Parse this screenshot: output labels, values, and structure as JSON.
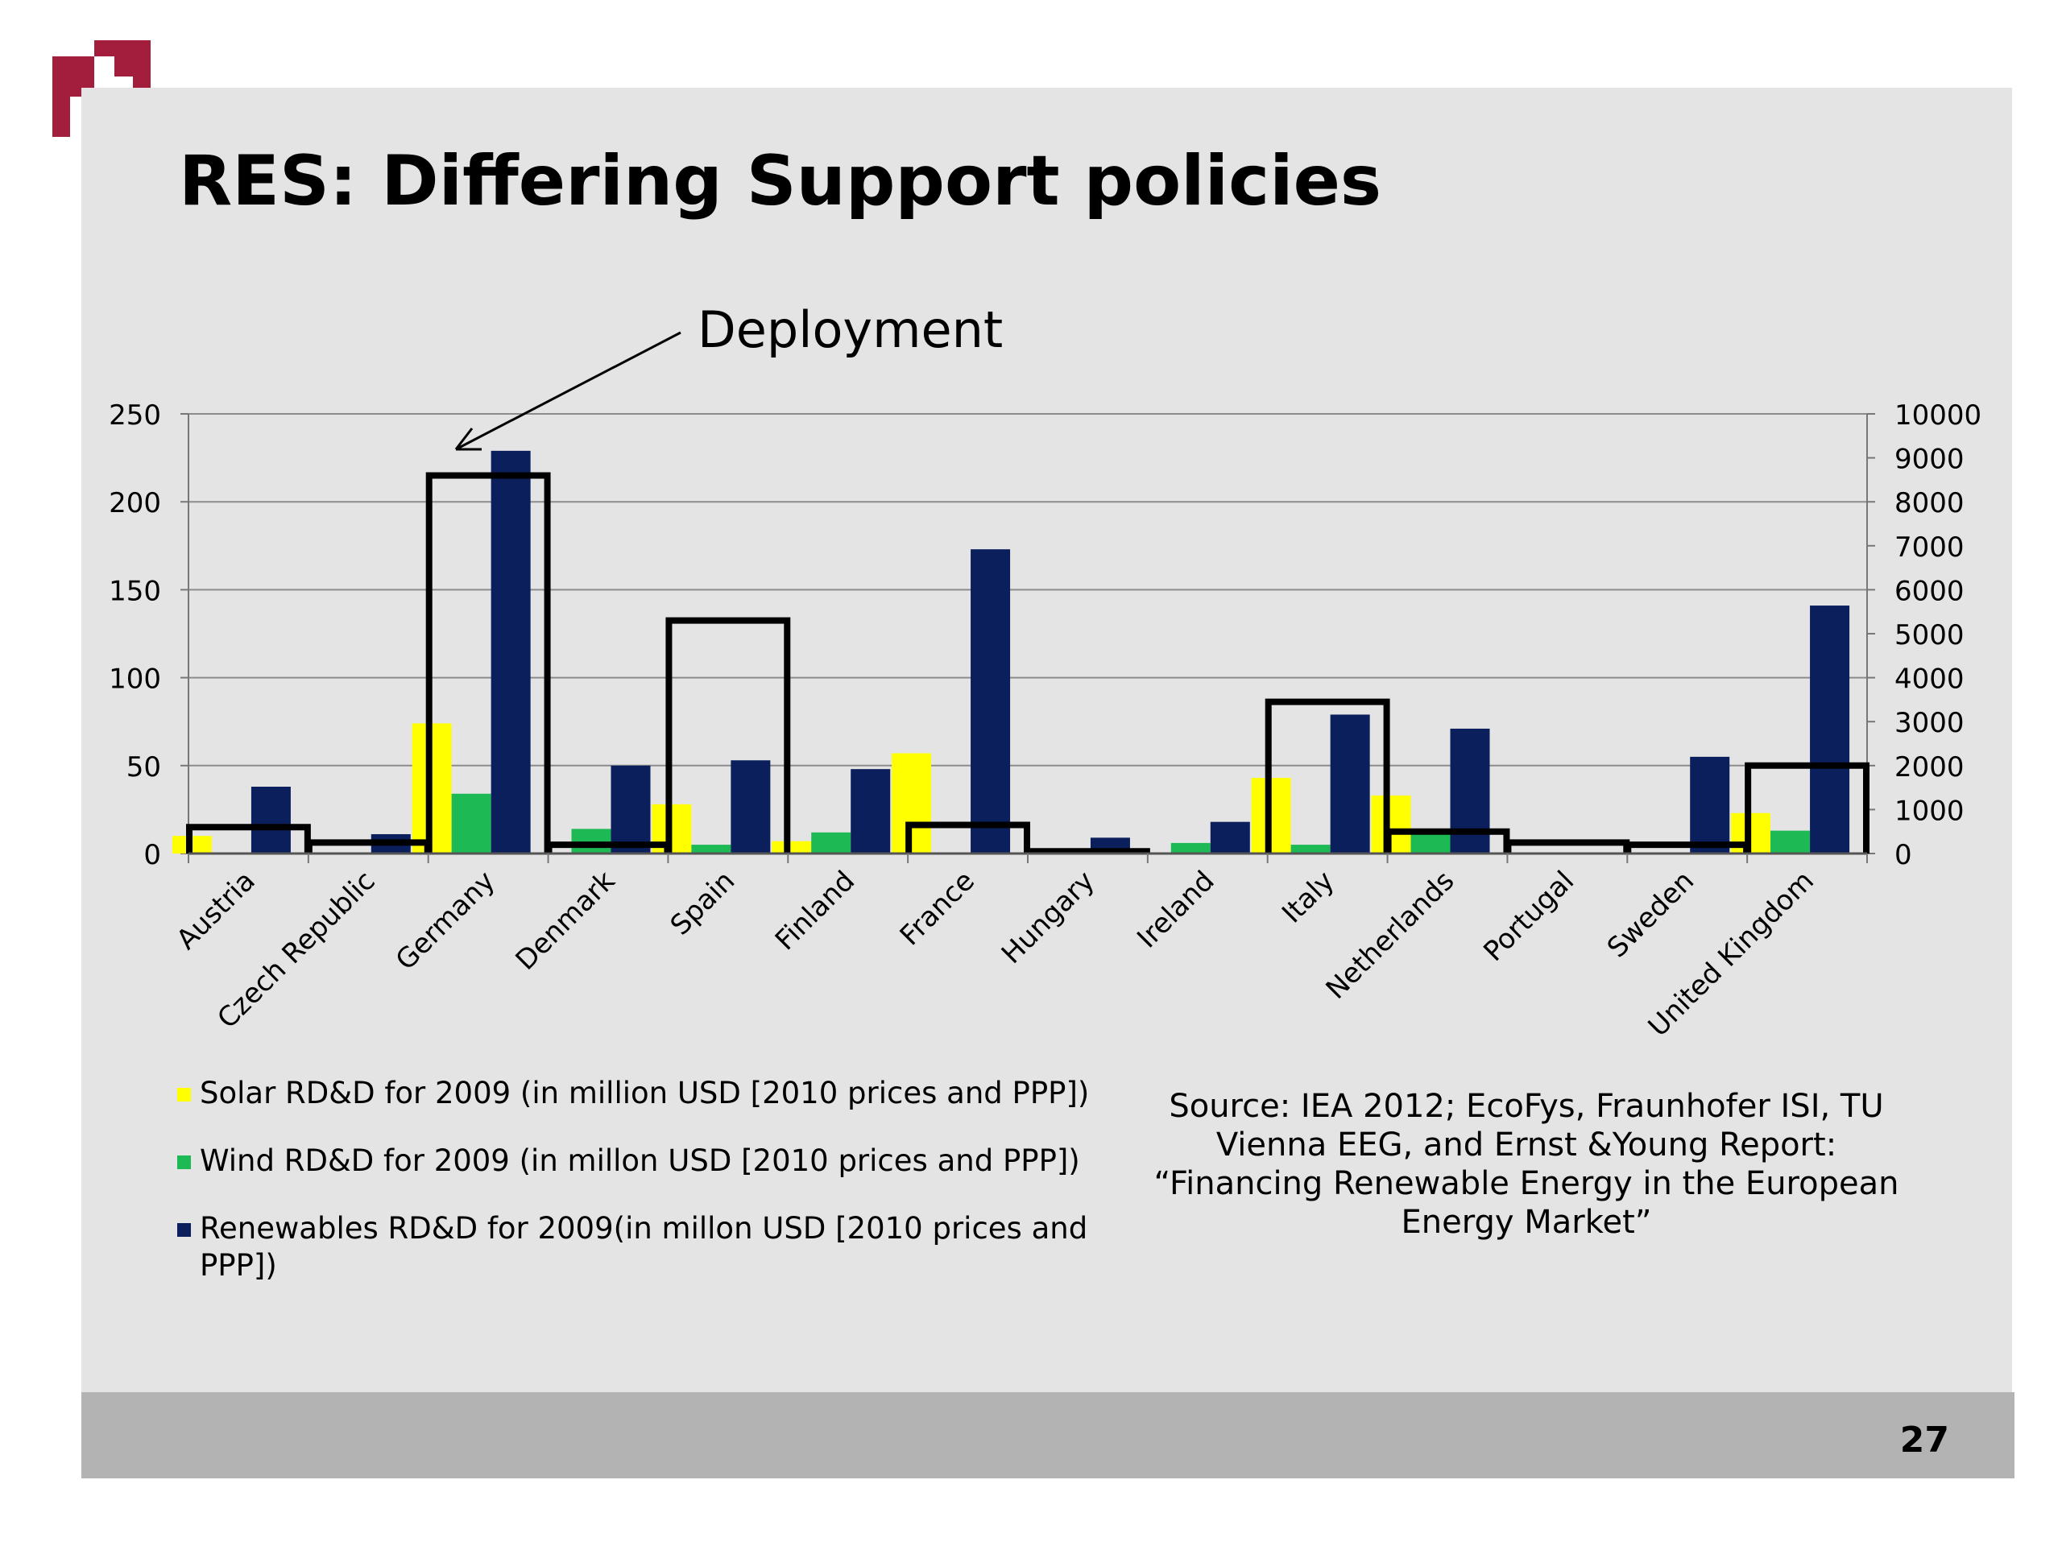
{
  "slide": {
    "title": "RES: Differing Support policies",
    "page_number": "27",
    "annotation": "Deployment",
    "source": "Source: IEA 2012; EcoFys, Fraunhofer ISI, TU Vienna EEG, and Ernst &Young Report: “Financing Renewable Energy in the European Energy Market”"
  },
  "colors": {
    "brand": "#a31d3d",
    "solar": "#ffff00",
    "wind": "#1db954",
    "renewables": "#0a1f5c",
    "deployment": "#000000"
  },
  "chart_data": {
    "type": "bar",
    "categories": [
      "Austria",
      "Czech Republic",
      "Germany",
      "Denmark",
      "Spain",
      "Finland",
      "France",
      "Hungary",
      "Ireland",
      "Italy",
      "Netherlands",
      "Portugal",
      "Sweden",
      "United Kingdom"
    ],
    "series": [
      {
        "name": "Solar RD&D for 2009 (in million USD [2010 prices and PPP])",
        "axis": "left",
        "color": "#ffff00",
        "values": [
          10,
          0,
          74,
          0,
          28,
          7,
          57,
          0,
          0,
          43,
          33,
          0,
          0,
          23
        ]
      },
      {
        "name": "Wind RD&D for 2009 (in millon USD [2010 prices and PPP])",
        "axis": "left",
        "color": "#1db954",
        "values": [
          0,
          0,
          34,
          14,
          5,
          12,
          0,
          0,
          6,
          5,
          12,
          0,
          0,
          13
        ]
      },
      {
        "name": "Renewables RD&D for 2009(in millon USD [2010 prices and PPP])",
        "axis": "left",
        "color": "#0a1f5c",
        "values": [
          38,
          11,
          229,
          50,
          53,
          48,
          173,
          9,
          18,
          79,
          71,
          0,
          55,
          141
        ]
      },
      {
        "name": "",
        "axis": "right",
        "style": "outline",
        "values": [
          600,
          250,
          8600,
          200,
          5300,
          0,
          650,
          50,
          0,
          3450,
          500,
          250,
          200,
          2000
        ]
      }
    ],
    "y_left": {
      "ylim": [
        0,
        250
      ],
      "ticks": [
        0,
        50,
        100,
        150,
        200,
        250
      ]
    },
    "y_right": {
      "ylim": [
        0,
        10000
      ],
      "ticks": [
        0,
        1000,
        2000,
        3000,
        4000,
        5000,
        6000,
        7000,
        8000,
        9000,
        10000
      ]
    },
    "grid": true,
    "legend_position": "bottom-left",
    "xlabel": "",
    "ylabel": ""
  }
}
